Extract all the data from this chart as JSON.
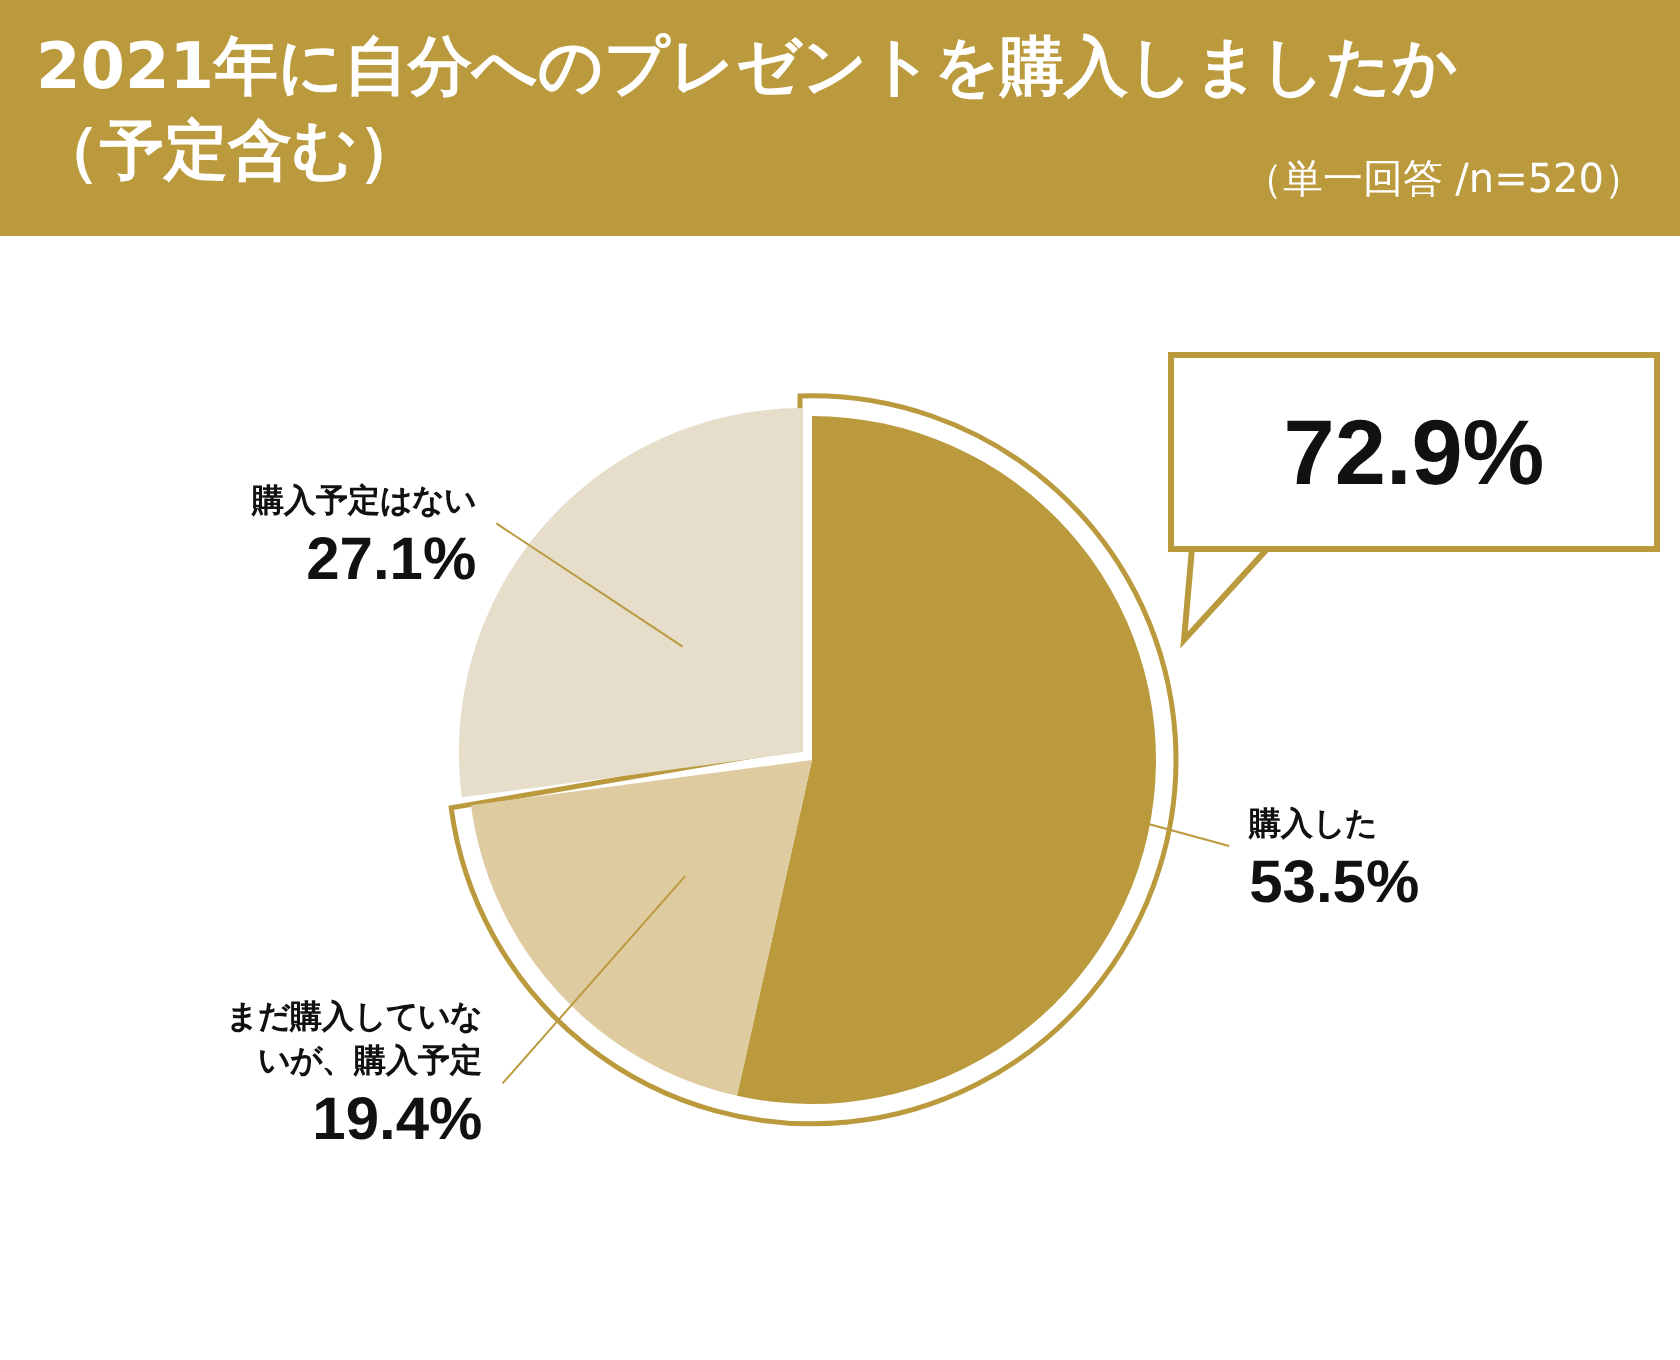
{
  "chart_data": {
    "type": "pie",
    "title": "2021年に自分へのプレゼントを購入しましたか（予定含む）",
    "subtitle": "（単一回答 /n=520）",
    "categories": [
      "購入した",
      "まだ購入していないが、購入予定",
      "購入予定はない"
    ],
    "values": [
      53.5,
      19.4,
      27.1
    ],
    "value_labels": [
      "53.5%",
      "19.4%",
      "27.1%"
    ],
    "colors": [
      "#bb9a3e",
      "#dfcba0",
      "#e6ddcb"
    ],
    "annotations": [
      "72.9%"
    ]
  }
}
